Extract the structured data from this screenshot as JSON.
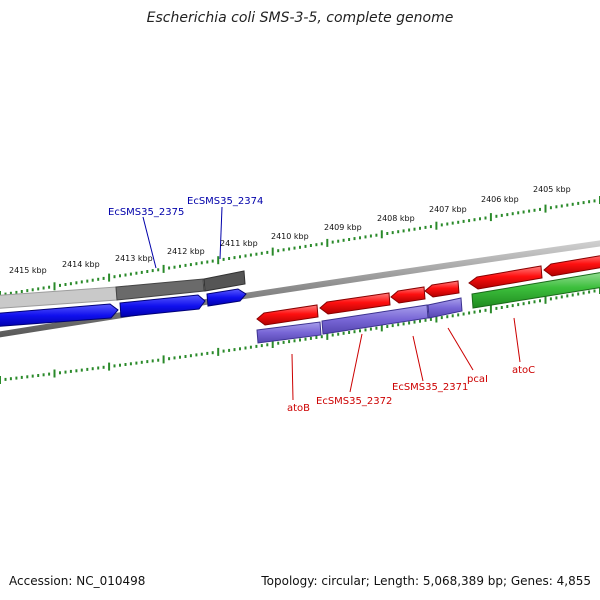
{
  "title": "Escherichia coli SMS-3-5, complete genome",
  "footer": {
    "accession": "Accession: NC_010498",
    "summary": "Topology: circular; Length: 5,068,389 bp; Genes: 4,855"
  },
  "ticks": [
    "2405 kbp",
    "2406 kbp",
    "2407 kbp",
    "2408 kbp",
    "2409 kbp",
    "2410 kbp",
    "2411 kbp",
    "2412 kbp",
    "2413 kbp",
    "2414 kbp",
    "2415 kbp"
  ],
  "genes": {
    "blue_labels": [
      "EcSMS35_2375",
      "EcSMS35_2374"
    ],
    "red_labels": [
      "atoB",
      "EcSMS35_2372",
      "EcSMS35_2371",
      "pcaI",
      "atoC"
    ]
  },
  "colors": {
    "forward_cds": "#ff0000",
    "reverse_cds": "#0000ee",
    "cds_bar": "#7b68d4",
    "green_cds": "#33bb33",
    "tick": "#2a8a2a",
    "blue_label": "#0000aa",
    "red_label": "#cc0000"
  }
}
